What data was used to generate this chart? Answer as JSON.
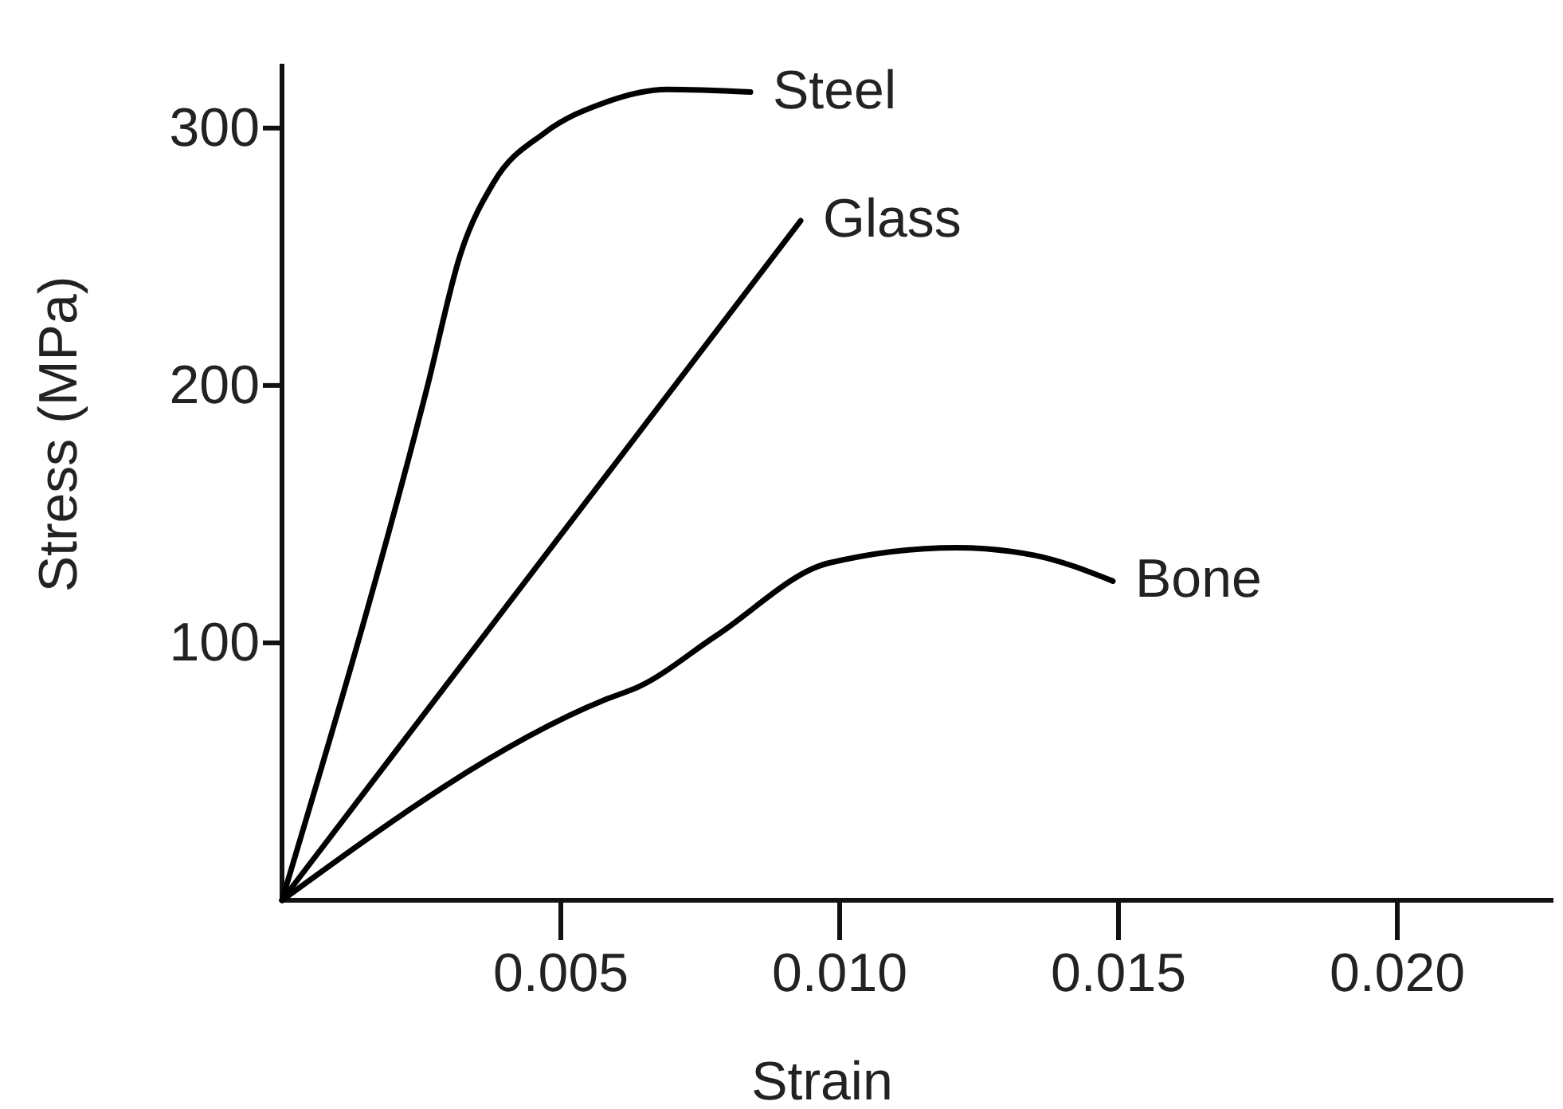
{
  "chart_data": {
    "type": "line",
    "xlabel": "Strain",
    "ylabel": "Stress (MPa)",
    "xlim": [
      0,
      0.0228
    ],
    "ylim": [
      0,
      325
    ],
    "xticks": [
      {
        "value": 0.005,
        "label": "0.005"
      },
      {
        "value": 0.01,
        "label": "0.010"
      },
      {
        "value": 0.015,
        "label": "0.015"
      },
      {
        "value": 0.02,
        "label": "0.020"
      }
    ],
    "yticks": [
      100,
      200,
      300
    ],
    "grid": false,
    "legend": false,
    "marker": "none",
    "line_style": "solid",
    "series": [
      {
        "name": "Steel",
        "color": "#000000",
        "x": [
          0,
          0.0026,
          0.0032,
          0.0038,
          0.0047,
          0.0058,
          0.0069,
          0.0084
        ],
        "values": [
          0,
          199,
          251,
          279,
          298,
          310,
          315,
          314
        ]
      },
      {
        "name": "Glass",
        "color": "#000000",
        "x": [
          0,
          0.0093
        ],
        "values": [
          0,
          264
        ]
      },
      {
        "name": "Bone",
        "color": "#000000",
        "x": [
          0,
          0.0058,
          0.0064,
          0.0078,
          0.0098,
          0.0121,
          0.0135,
          0.0149
        ],
        "values": [
          0,
          78,
          83,
          103,
          131,
          137,
          134,
          124
        ]
      }
    ]
  }
}
